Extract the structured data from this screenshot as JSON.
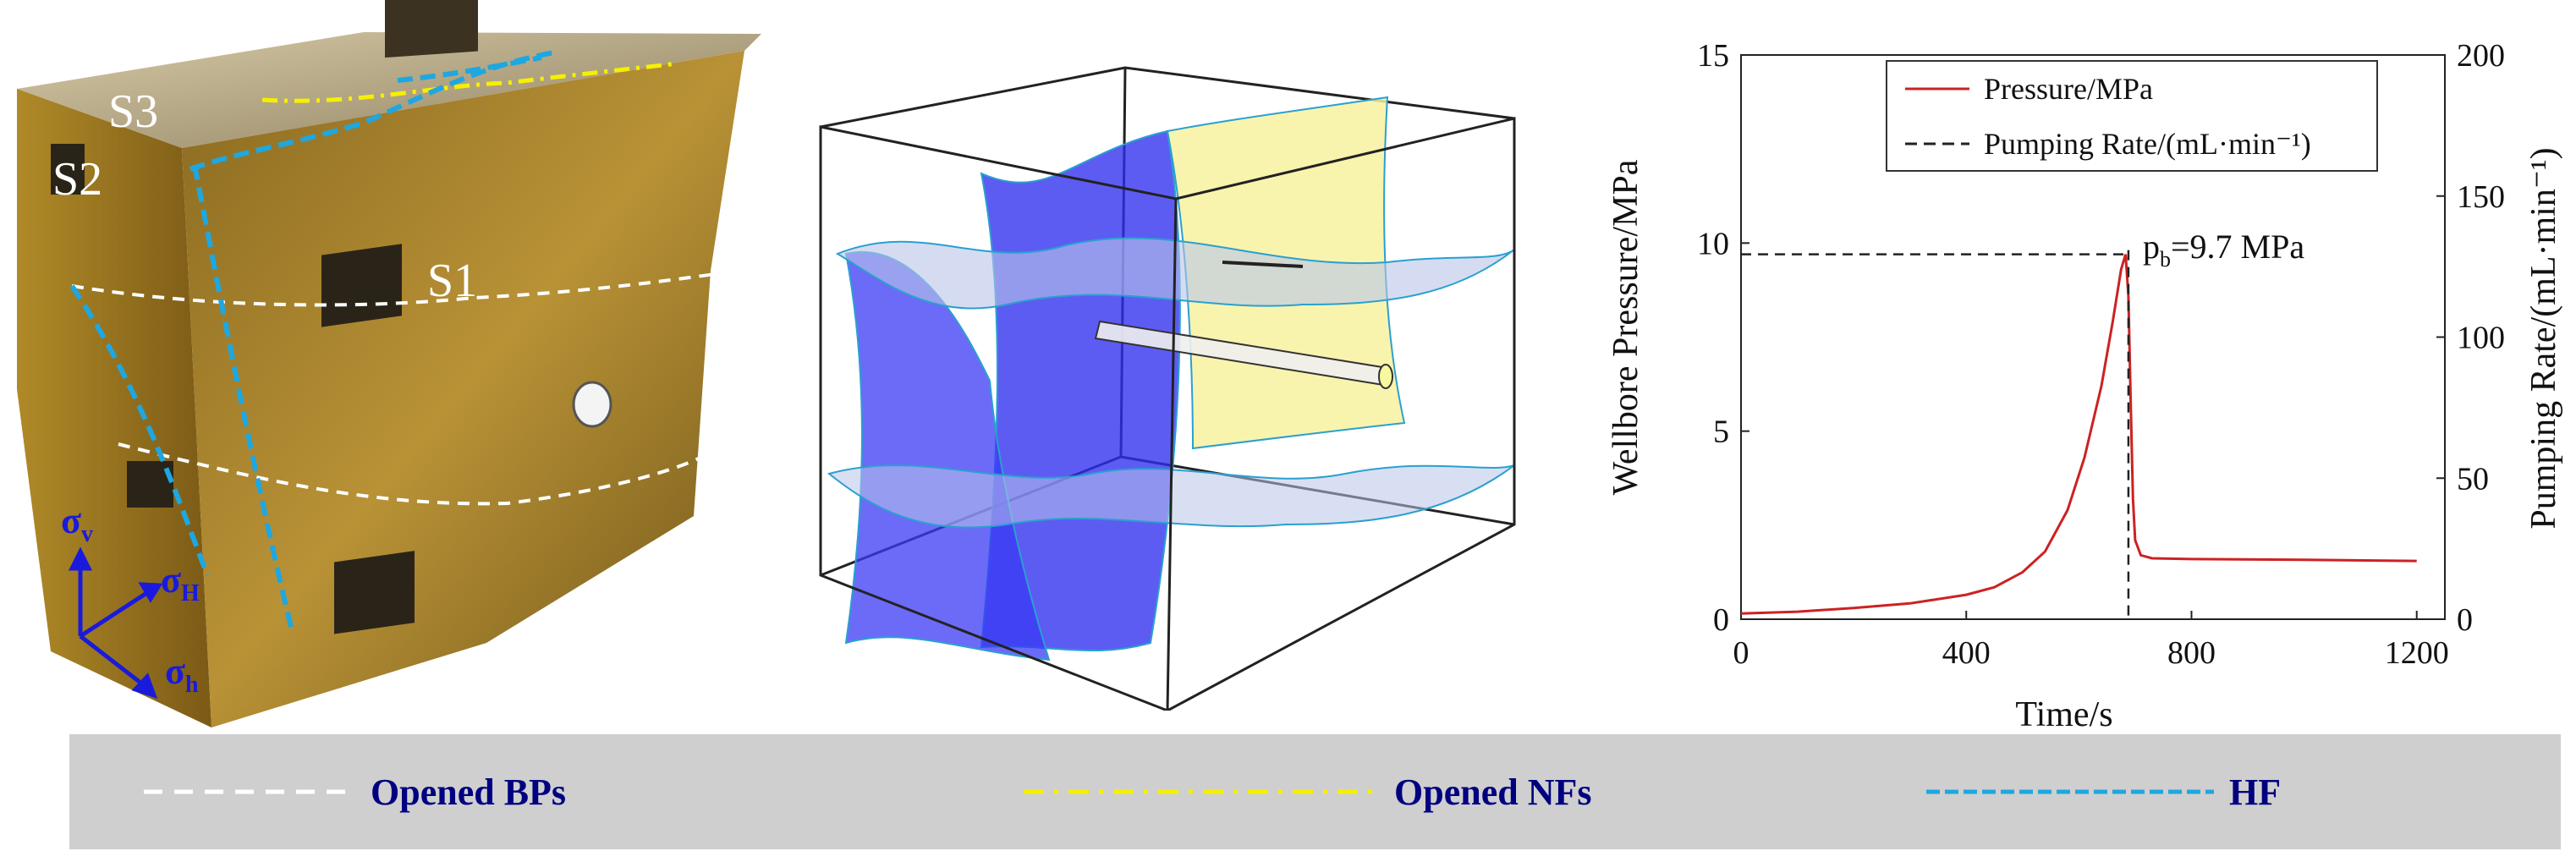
{
  "photo": {
    "face_labels": [
      "S1",
      "S2",
      "S3"
    ],
    "stress_labels": {
      "vertical": {
        "sym": "σ",
        "sub": "v"
      },
      "max_horizontal": {
        "sym": "σ",
        "sub": "H"
      },
      "min_horizontal": {
        "sym": "σ",
        "sub": "h"
      }
    },
    "colors": {
      "bp": "#ffffff",
      "nf": "#f5f000",
      "hf": "#1ea7e0",
      "stress_arrow": "#1a1adc"
    }
  },
  "legend": {
    "items": [
      {
        "label": "Opened BPs",
        "color": "#ffffff",
        "style": "dashed"
      },
      {
        "label": "Opened NFs",
        "color": "#f5f000",
        "style": "dash-dot"
      },
      {
        "label": "HF",
        "color": "#1ea7e0",
        "style": "dashed"
      }
    ],
    "background": "#cfcfcf",
    "text_color": "#000080"
  },
  "chart_data": {
    "type": "line",
    "xlabel": "Time/s",
    "ylabel_left": "Wellbore Pressure/MPa",
    "ylabel_right": "Pumping Rate/(mL·min⁻¹)",
    "xlim": [
      0,
      1250
    ],
    "ylim_left": [
      0,
      15
    ],
    "ylim_right": [
      0,
      200
    ],
    "x_ticks": [
      0,
      400,
      800,
      1200
    ],
    "y_ticks_left": [
      0,
      5,
      10,
      15
    ],
    "y_ticks_right": [
      0,
      50,
      100,
      150,
      200
    ],
    "series": [
      {
        "name": "Pressure/MPa",
        "axis": "left",
        "color": "#cc2222",
        "style": "solid",
        "x": [
          0,
          100,
          200,
          300,
          400,
          450,
          500,
          540,
          580,
          610,
          640,
          660,
          675,
          683,
          688,
          692,
          696,
          700,
          710,
          730,
          800,
          1000,
          1200
        ],
        "y": [
          0.15,
          0.2,
          0.3,
          0.42,
          0.65,
          0.85,
          1.25,
          1.8,
          2.9,
          4.3,
          6.2,
          7.9,
          9.3,
          9.7,
          8.6,
          5.8,
          3.2,
          2.1,
          1.7,
          1.62,
          1.6,
          1.58,
          1.55
        ]
      },
      {
        "name": "Pumping Rate/(mL·min⁻¹)",
        "axis": "right",
        "color": "#222222",
        "style": "dashed"
      }
    ],
    "annotation": {
      "text": "=9.7 MPa",
      "symbol": "p",
      "subscript": "b",
      "x": 683,
      "y": 9.7
    }
  }
}
